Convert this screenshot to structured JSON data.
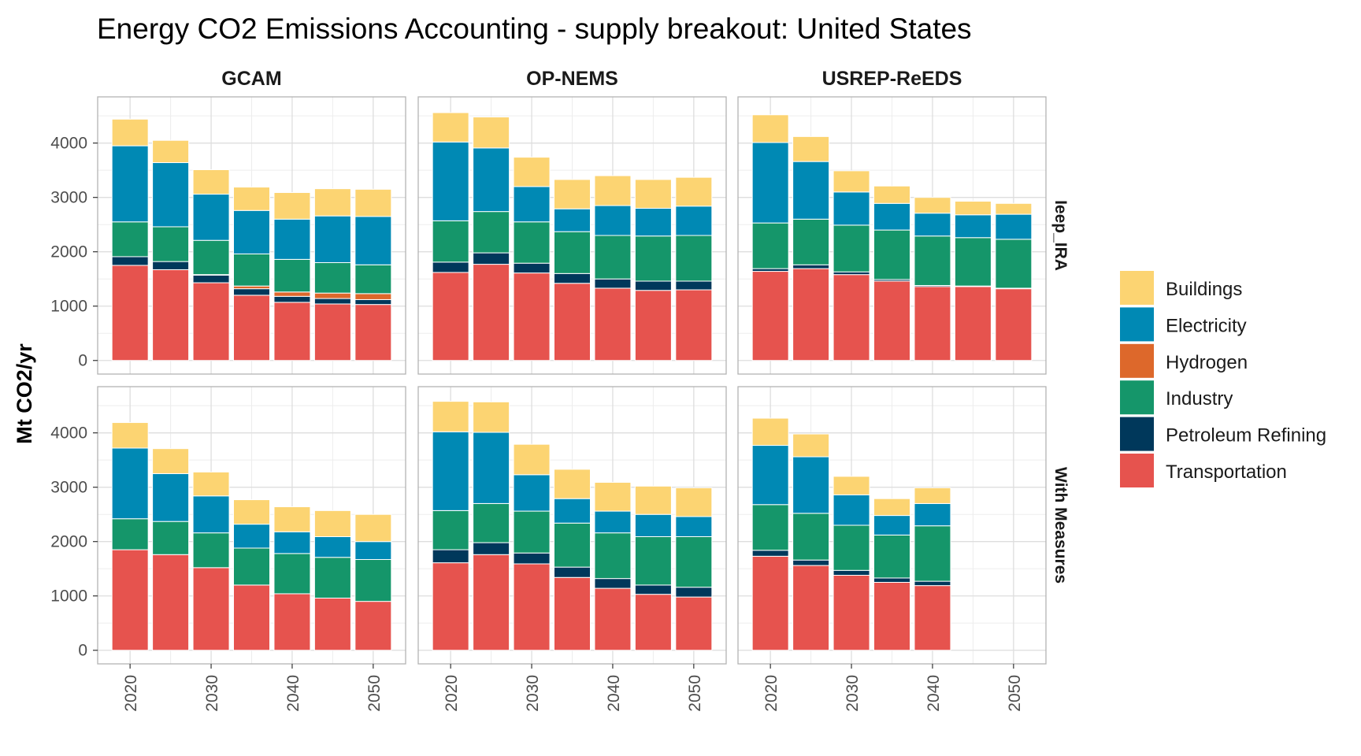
{
  "chart_data": {
    "type": "bar",
    "stacked": true,
    "title": "Energy CO2 Emissions Accounting - supply breakout: United States",
    "ylabel": "Mt CO2/yr",
    "xlabel": "",
    "ylim": [
      -250,
      4850
    ],
    "xlim": [
      2016,
      2054
    ],
    "yticks": [
      0,
      1000,
      2000,
      3000,
      4000
    ],
    "xticks": [
      2020,
      2030,
      2040,
      2050
    ],
    "grid": true,
    "legend_position": "right",
    "models": [
      "GCAM",
      "OP-NEMS",
      "USREP-ReEDS"
    ],
    "scenarios": [
      "Ieep_IRA",
      "With Measures"
    ],
    "sectors": [
      "Transportation",
      "Petroleum Refining",
      "Hydrogen",
      "Industry",
      "Electricity",
      "Buildings"
    ],
    "legend_order": [
      "Buildings",
      "Electricity",
      "Hydrogen",
      "Industry",
      "Petroleum Refining",
      "Transportation"
    ],
    "colors": {
      "Buildings": "#fcd472",
      "Electricity": "#0089b4",
      "Hydrogen": "#dd682b",
      "Industry": "#15966a",
      "Petroleum Refining": "#00385b",
      "Transportation": "#e6534e"
    },
    "panels": [
      {
        "model": "GCAM",
        "scenario": "Ieep_IRA",
        "years": [
          2020,
          2025,
          2030,
          2035,
          2040,
          2045,
          2050
        ],
        "values": {
          "Transportation": [
            1750,
            1670,
            1430,
            1200,
            1070,
            1040,
            1030
          ],
          "Petroleum Refining": [
            160,
            150,
            140,
            120,
            110,
            100,
            90
          ],
          "Hydrogen": [
            0,
            0,
            10,
            50,
            80,
            100,
            110
          ],
          "Industry": [
            640,
            640,
            630,
            590,
            600,
            560,
            530
          ],
          "Electricity": [
            1400,
            1180,
            850,
            800,
            740,
            860,
            890
          ],
          "Buildings": [
            490,
            410,
            450,
            430,
            490,
            500,
            500
          ]
        }
      },
      {
        "model": "OP-NEMS",
        "scenario": "Ieep_IRA",
        "years": [
          2020,
          2025,
          2030,
          2035,
          2040,
          2045,
          2050
        ],
        "values": {
          "Transportation": [
            1620,
            1770,
            1610,
            1420,
            1330,
            1290,
            1300
          ],
          "Petroleum Refining": [
            190,
            210,
            180,
            180,
            170,
            170,
            160
          ],
          "Hydrogen": [
            0,
            0,
            0,
            0,
            0,
            0,
            0
          ],
          "Industry": [
            760,
            760,
            760,
            770,
            800,
            830,
            840
          ],
          "Electricity": [
            1450,
            1170,
            650,
            420,
            550,
            510,
            540
          ],
          "Buildings": [
            540,
            570,
            540,
            540,
            550,
            530,
            530
          ]
        }
      },
      {
        "model": "USREP-ReEDS",
        "scenario": "Ieep_IRA",
        "years": [
          2020,
          2025,
          2030,
          2035,
          2040,
          2045,
          2050
        ],
        "values": {
          "Transportation": [
            1640,
            1690,
            1580,
            1460,
            1360,
            1360,
            1320
          ],
          "Petroleum Refining": [
            50,
            70,
            50,
            30,
            20,
            10,
            10
          ],
          "Hydrogen": [
            0,
            0,
            0,
            0,
            0,
            0,
            0
          ],
          "Industry": [
            840,
            840,
            860,
            910,
            910,
            890,
            900
          ],
          "Electricity": [
            1480,
            1060,
            610,
            490,
            420,
            420,
            460
          ],
          "Buildings": [
            510,
            460,
            390,
            320,
            290,
            250,
            200
          ]
        }
      },
      {
        "model": "GCAM",
        "scenario": "With Measures",
        "years": [
          2020,
          2025,
          2030,
          2035,
          2040,
          2045,
          2050
        ],
        "values": {
          "Transportation": [
            1850,
            1760,
            1520,
            1200,
            1040,
            960,
            900
          ],
          "Petroleum Refining": [
            0,
            0,
            0,
            0,
            0,
            0,
            0
          ],
          "Hydrogen": [
            0,
            0,
            0,
            0,
            0,
            0,
            0
          ],
          "Industry": [
            570,
            610,
            640,
            680,
            740,
            750,
            770
          ],
          "Electricity": [
            1300,
            880,
            680,
            440,
            400,
            380,
            330
          ],
          "Buildings": [
            470,
            460,
            440,
            450,
            460,
            480,
            500
          ]
        }
      },
      {
        "model": "OP-NEMS",
        "scenario": "With Measures",
        "years": [
          2020,
          2025,
          2030,
          2035,
          2040,
          2045,
          2050
        ],
        "values": {
          "Transportation": [
            1610,
            1760,
            1590,
            1340,
            1140,
            1030,
            980
          ],
          "Petroleum Refining": [
            240,
            220,
            200,
            190,
            180,
            170,
            180
          ],
          "Hydrogen": [
            0,
            0,
            0,
            0,
            0,
            0,
            0
          ],
          "Industry": [
            720,
            720,
            770,
            810,
            840,
            890,
            930
          ],
          "Electricity": [
            1450,
            1310,
            670,
            450,
            400,
            410,
            370
          ],
          "Buildings": [
            560,
            560,
            560,
            540,
            530,
            520,
            530
          ]
        }
      },
      {
        "model": "USREP-ReEDS",
        "scenario": "With Measures",
        "years": [
          2020,
          2025,
          2030,
          2035,
          2040
        ],
        "values": {
          "Transportation": [
            1730,
            1560,
            1380,
            1250,
            1190
          ],
          "Petroleum Refining": [
            110,
            100,
            90,
            80,
            80
          ],
          "Hydrogen": [
            0,
            0,
            0,
            0,
            0
          ],
          "Industry": [
            840,
            860,
            830,
            790,
            1020
          ],
          "Electricity": [
            1090,
            1040,
            560,
            360,
            410
          ],
          "Buildings": [
            500,
            420,
            340,
            310,
            290
          ]
        }
      }
    ]
  }
}
